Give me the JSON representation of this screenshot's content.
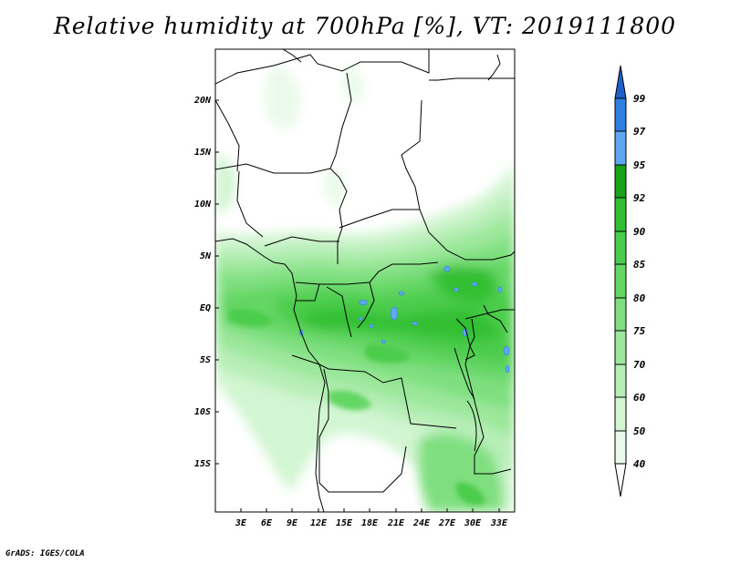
{
  "title": "Relative humidity at 700hPa [%], VT: 2019111800",
  "credit": "GrADS: IGES/COLA",
  "map": {
    "lat_labels": [
      "20N",
      "15N",
      "10N",
      "5N",
      "EQ",
      "5S",
      "10S",
      "15S"
    ],
    "lon_labels": [
      "3E",
      "6E",
      "9E",
      "12E",
      "15E",
      "18E",
      "21E",
      "24E",
      "27E",
      "30E",
      "33E"
    ]
  },
  "colorbar": {
    "levels": [
      "40",
      "50",
      "60",
      "70",
      "75",
      "80",
      "85",
      "90",
      "92",
      "95",
      "97",
      "99"
    ],
    "colors": {
      "40-50": "#eafaea",
      "50-60": "#d2f5d2",
      "60-70": "#b7eeb7",
      "70-75": "#9be79b",
      "75-80": "#7fdf7f",
      "80-85": "#63d663",
      "85-90": "#4ccc4c",
      "90-92": "#33bf33",
      "92-95": "#1aa21a",
      "95-97": "#5fa8f0",
      "97-99": "#2f7fe0",
      "above-99": "#1f5fc8"
    }
  }
}
